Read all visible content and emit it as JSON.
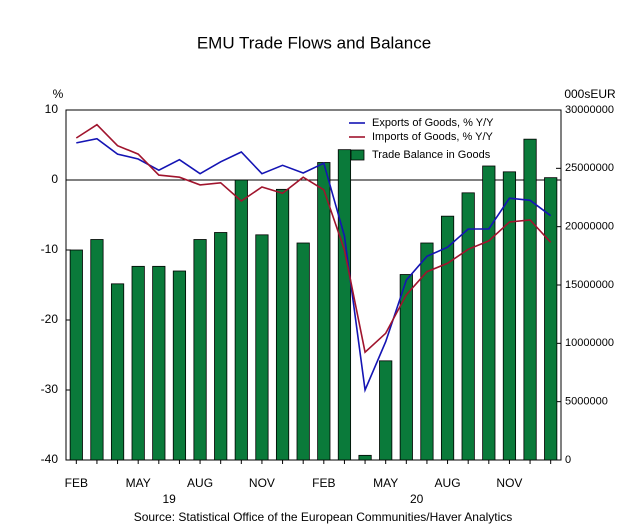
{
  "chart_data": {
    "type": "bar_line",
    "title": "EMU Trade Flows and Balance",
    "y_axis_label": "%",
    "y2_axis_label": "000sEUR",
    "source": "Source:  Statistical Office of the European Communities/Haver Analytics",
    "categories": [
      "FEB",
      null,
      null,
      "MAY",
      null,
      null,
      "AUG",
      null,
      null,
      "NOV",
      null,
      null,
      "FEB",
      null,
      null,
      "MAY",
      null,
      null,
      "AUG",
      null,
      null,
      "NOV",
      null,
      null
    ],
    "year_labels": [
      "19",
      "20"
    ],
    "ylim": [
      -40,
      10
    ],
    "yticks": [
      -40,
      -30,
      -20,
      -10,
      0,
      10
    ],
    "y2lim": [
      0,
      30000000
    ],
    "y2ticks": [
      0,
      5000000,
      10000000,
      15000000,
      20000000,
      25000000,
      30000000
    ],
    "legend": "upper right",
    "series": [
      {
        "name": "Exports of Goods, % Y/Y",
        "type": "line",
        "color": "#1414b4",
        "values": [
          5.3,
          5.9,
          3.7,
          3.0,
          1.4,
          2.9,
          0.9,
          2.6,
          4.0,
          0.9,
          2.1,
          1.0,
          2.4,
          -8.0,
          -30.0,
          -23.1,
          -14.3,
          -10.9,
          -9.6,
          -7.0,
          -7.0,
          -2.6,
          -2.9,
          -5.1
        ]
      },
      {
        "name": "Imports of Goods, % Y/Y",
        "type": "line",
        "color": "#a0142d",
        "values": [
          6.0,
          7.9,
          4.9,
          3.7,
          0.7,
          0.4,
          -0.7,
          -0.4,
          -3.0,
          -1.0,
          -1.9,
          0.4,
          -1.4,
          -10.0,
          -24.6,
          -21.9,
          -16.4,
          -13.1,
          -11.9,
          -9.9,
          -8.7,
          -6.0,
          -5.7,
          -8.9
        ]
      },
      {
        "name": "Trade Balance in Goods",
        "type": "bar",
        "axis": "y2",
        "color": "#0a7a3a",
        "values": [
          18000000,
          18900000,
          15100000,
          16600000,
          16600000,
          16200000,
          18900000,
          19500000,
          24000000,
          19300000,
          23200000,
          18600000,
          25500000,
          26600000,
          400000,
          8500000,
          15900000,
          18600000,
          20900000,
          22900000,
          25200000,
          24700000,
          27500000,
          24200000
        ]
      }
    ]
  }
}
